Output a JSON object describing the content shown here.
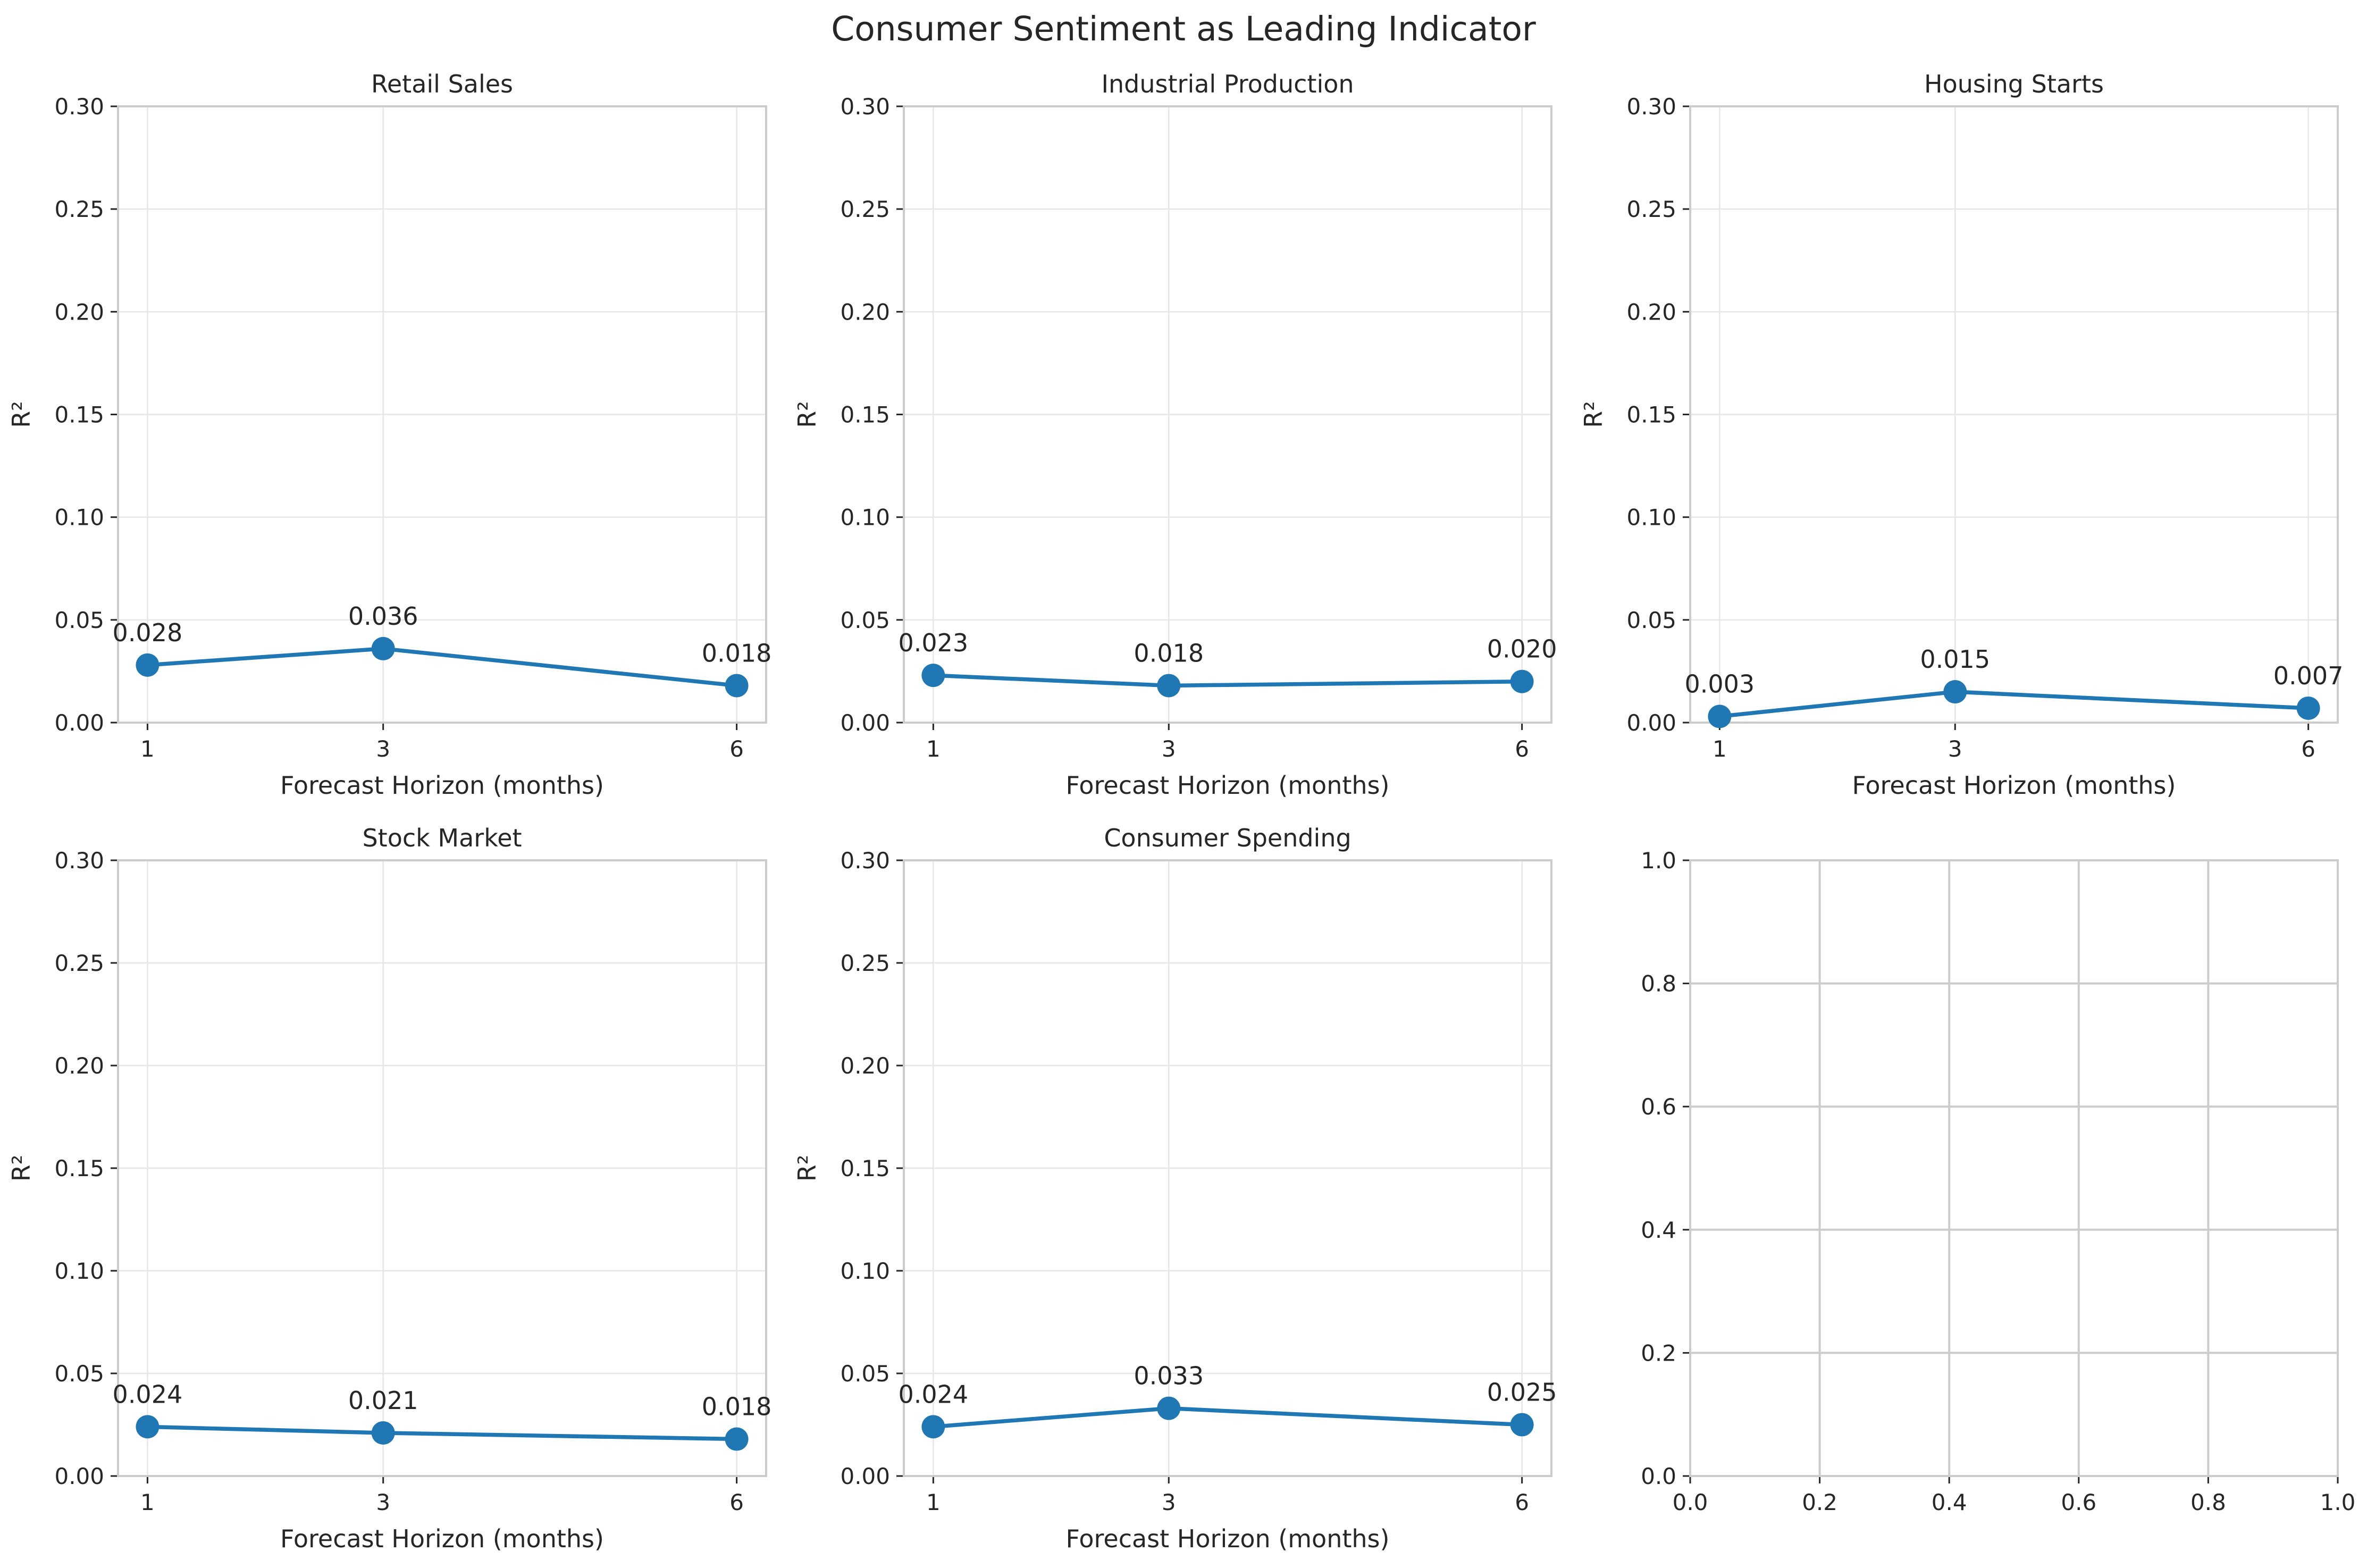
{
  "figure": {
    "title": "Consumer Sentiment as Leading Indicator",
    "colors": {
      "series": "#1f77b4",
      "grid": "#e6e6e6",
      "frame": "#cccccc",
      "text": "#262626"
    }
  },
  "chart_data": [
    {
      "type": "line",
      "title": "Retail Sales",
      "xlabel": "Forecast Horizon (months)",
      "ylabel": "R²",
      "x": [
        1,
        3,
        6
      ],
      "xticks": [
        "1",
        "3",
        "6"
      ],
      "y": [
        0.028,
        0.036,
        0.018
      ],
      "data_labels": [
        "0.028",
        "0.036",
        "0.018"
      ],
      "ylim": [
        0,
        0.3
      ],
      "yticks": [
        "0.00",
        "0.05",
        "0.10",
        "0.15",
        "0.20",
        "0.25",
        "0.30"
      ],
      "grid": true
    },
    {
      "type": "line",
      "title": "Industrial Production",
      "xlabel": "Forecast Horizon (months)",
      "ylabel": "R²",
      "x": [
        1,
        3,
        6
      ],
      "xticks": [
        "1",
        "3",
        "6"
      ],
      "y": [
        0.023,
        0.018,
        0.02
      ],
      "data_labels": [
        "0.023",
        "0.018",
        "0.020"
      ],
      "ylim": [
        0,
        0.3
      ],
      "yticks": [
        "0.00",
        "0.05",
        "0.10",
        "0.15",
        "0.20",
        "0.25",
        "0.30"
      ],
      "grid": true
    },
    {
      "type": "line",
      "title": "Housing Starts",
      "xlabel": "Forecast Horizon (months)",
      "ylabel": "R²",
      "x": [
        1,
        3,
        6
      ],
      "xticks": [
        "1",
        "3",
        "6"
      ],
      "y": [
        0.003,
        0.015,
        0.007
      ],
      "data_labels": [
        "0.003",
        "0.015",
        "0.007"
      ],
      "ylim": [
        0,
        0.3
      ],
      "yticks": [
        "0.00",
        "0.05",
        "0.10",
        "0.15",
        "0.20",
        "0.25",
        "0.30"
      ],
      "grid": true
    },
    {
      "type": "line",
      "title": "Stock Market",
      "xlabel": "Forecast Horizon (months)",
      "ylabel": "R²",
      "x": [
        1,
        3,
        6
      ],
      "xticks": [
        "1",
        "3",
        "6"
      ],
      "y": [
        0.024,
        0.021,
        0.018
      ],
      "data_labels": [
        "0.024",
        "0.021",
        "0.018"
      ],
      "ylim": [
        0,
        0.3
      ],
      "yticks": [
        "0.00",
        "0.05",
        "0.10",
        "0.15",
        "0.20",
        "0.25",
        "0.30"
      ],
      "grid": true
    },
    {
      "type": "line",
      "title": "Consumer Spending",
      "xlabel": "Forecast Horizon (months)",
      "ylabel": "R²",
      "x": [
        1,
        3,
        6
      ],
      "xticks": [
        "1",
        "3",
        "6"
      ],
      "y": [
        0.024,
        0.033,
        0.025
      ],
      "data_labels": [
        "0.024",
        "0.033",
        "0.025"
      ],
      "ylim": [
        0,
        0.3
      ],
      "yticks": [
        "0.00",
        "0.05",
        "0.10",
        "0.15",
        "0.20",
        "0.25",
        "0.30"
      ],
      "grid": true
    },
    {
      "type": "line",
      "title": "",
      "xlabel": "",
      "ylabel": "",
      "x": [],
      "y": [],
      "xlim": [
        0,
        1
      ],
      "ylim": [
        0,
        1
      ],
      "xticks": [
        "0.0",
        "0.2",
        "0.4",
        "0.6",
        "0.8",
        "1.0"
      ],
      "yticks": [
        "0.0",
        "0.2",
        "0.4",
        "0.6",
        "0.8",
        "1.0"
      ],
      "grid": true,
      "empty": true
    }
  ]
}
